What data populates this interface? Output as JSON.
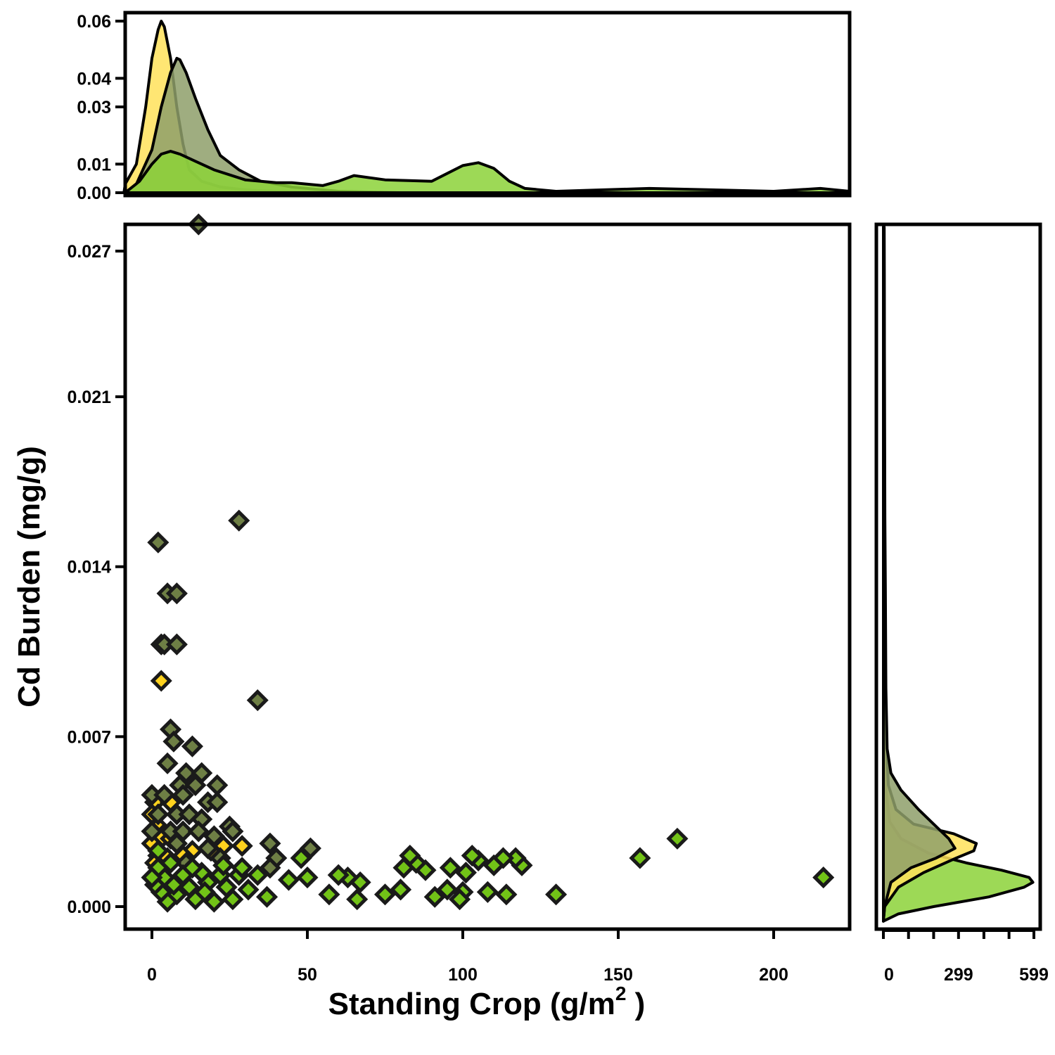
{
  "chart_data": {
    "type": "scatter",
    "xlabel": "Standing Crop (g/m",
    "xlabel_sup": "2",
    "xlabel_suffix": " )",
    "ylabel": "Cd Burden (mg/g)",
    "xlim": [
      -9,
      225
    ],
    "ylim": [
      -0.001,
      0.028
    ],
    "x_ticks": [
      0,
      50,
      100,
      150,
      200
    ],
    "x_tick_labels": [
      "0",
      "50",
      "100",
      "150",
      "200"
    ],
    "y_ticks": [
      0.0,
      0.007,
      0.014,
      0.021,
      0.027
    ],
    "y_tick_labels": [
      "0.000",
      "0.007",
      "0.014",
      "0.021",
      "0.027"
    ],
    "colors": {
      "yellow": "#FFD21E",
      "olive": "#6E7F45",
      "green": "#72C317",
      "outline": "#1A1A1A"
    },
    "series": [
      {
        "color": "#FFD21E",
        "points": [
          [
            3,
            0.0108
          ],
          [
            3,
            0.0093
          ],
          [
            1,
            0.0043
          ],
          [
            6,
            0.0043
          ],
          [
            0,
            0.0038
          ],
          [
            2,
            0.0033
          ],
          [
            4,
            0.003
          ],
          [
            3,
            0.0028
          ],
          [
            6,
            0.0028
          ],
          [
            0,
            0.0026
          ],
          [
            8,
            0.0026
          ],
          [
            13,
            0.0023
          ],
          [
            19,
            0.0023
          ],
          [
            23,
            0.0025
          ],
          [
            29,
            0.0025
          ],
          [
            2,
            0.0021
          ],
          [
            5,
            0.002
          ],
          [
            1,
            0.0018
          ],
          [
            10,
            0.0021
          ]
        ]
      },
      {
        "color": "#6E7F45",
        "points": [
          [
            15,
            0.0281
          ],
          [
            28,
            0.0159
          ],
          [
            2,
            0.015
          ],
          [
            5,
            0.0129
          ],
          [
            8,
            0.0129
          ],
          [
            4,
            0.0108
          ],
          [
            8,
            0.0108
          ],
          [
            34,
            0.0085
          ],
          [
            6,
            0.0073
          ],
          [
            7,
            0.0068
          ],
          [
            13,
            0.0066
          ],
          [
            5,
            0.0059
          ],
          [
            11,
            0.0055
          ],
          [
            16,
            0.0055
          ],
          [
            9,
            0.005
          ],
          [
            14,
            0.005
          ],
          [
            21,
            0.005
          ],
          [
            0,
            0.0046
          ],
          [
            4,
            0.0046
          ],
          [
            10,
            0.0046
          ],
          [
            18,
            0.0043
          ],
          [
            21,
            0.0043
          ],
          [
            2,
            0.0038
          ],
          [
            8,
            0.0038
          ],
          [
            12,
            0.0038
          ],
          [
            16,
            0.0036
          ],
          [
            25,
            0.0033
          ],
          [
            0,
            0.0031
          ],
          [
            6,
            0.0031
          ],
          [
            10,
            0.0031
          ],
          [
            15,
            0.0031
          ],
          [
            20,
            0.0029
          ],
          [
            26,
            0.0031
          ],
          [
            38,
            0.0026
          ],
          [
            51,
            0.0024
          ],
          [
            8,
            0.0026
          ],
          [
            18,
            0.0024
          ],
          [
            40,
            0.002
          ],
          [
            38,
            0.0016
          ],
          [
            22,
            0.002
          ],
          [
            11,
            0.0018
          ]
        ]
      },
      {
        "color": "#72C317",
        "points": [
          [
            216,
            0.0012
          ],
          [
            169,
            0.0028
          ],
          [
            157,
            0.002
          ],
          [
            130,
            0.0005
          ],
          [
            119,
            0.0017
          ],
          [
            117,
            0.002
          ],
          [
            113,
            0.002
          ],
          [
            114,
            0.0005
          ],
          [
            110,
            0.0017
          ],
          [
            108,
            0.0006
          ],
          [
            105,
            0.0019
          ],
          [
            103,
            0.0021
          ],
          [
            101,
            0.0014
          ],
          [
            100,
            0.0006
          ],
          [
            99,
            0.0003
          ],
          [
            96,
            0.0016
          ],
          [
            95,
            0.0007
          ],
          [
            91,
            0.0004
          ],
          [
            88,
            0.0015
          ],
          [
            85,
            0.0018
          ],
          [
            83,
            0.0021
          ],
          [
            81,
            0.0016
          ],
          [
            80,
            0.0007
          ],
          [
            75,
            0.0005
          ],
          [
            67,
            0.001
          ],
          [
            66,
            0.0003
          ],
          [
            63,
            0.0012
          ],
          [
            60,
            0.0013
          ],
          [
            57,
            0.0005
          ],
          [
            50,
            0.0012
          ],
          [
            48,
            0.002
          ],
          [
            44,
            0.0011
          ],
          [
            37,
            0.0004
          ],
          [
            34,
            0.0013
          ],
          [
            31,
            0.0007
          ],
          [
            28,
            0.0013
          ],
          [
            26,
            0.0003
          ],
          [
            24,
            0.0008
          ],
          [
            22,
            0.0013
          ],
          [
            20,
            0.0002
          ],
          [
            18,
            0.001
          ],
          [
            16,
            0.0014
          ],
          [
            14,
            0.0003
          ],
          [
            12,
            0.0008
          ],
          [
            10,
            0.0013
          ],
          [
            8,
            0.0005
          ],
          [
            7,
            0.0009
          ],
          [
            5,
            0.0002
          ],
          [
            4,
            0.0012
          ],
          [
            3,
            0.0006
          ],
          [
            2,
            0.0016
          ],
          [
            1,
            0.0009
          ],
          [
            0,
            0.0012
          ],
          [
            2,
            0.0023
          ],
          [
            6,
            0.0018
          ],
          [
            13,
            0.0016
          ],
          [
            17,
            0.0006
          ],
          [
            23,
            0.0017
          ],
          [
            29,
            0.0016
          ]
        ]
      }
    ],
    "top_density": {
      "y_ticks": [
        0.0,
        0.01,
        0.03,
        0.04,
        0.06
      ],
      "y_tick_labels": [
        "0.00",
        "0.01",
        "0.03",
        "0.04",
        "0.06"
      ],
      "series": [
        {
          "color": "#FFE25A",
          "x": [
            -9,
            -5,
            -2,
            0,
            2,
            3,
            4,
            6,
            8,
            10,
            12,
            16,
            22,
            30,
            40,
            60,
            80,
            120,
            225
          ],
          "y": [
            0.003,
            0.01,
            0.03,
            0.047,
            0.057,
            0.06,
            0.058,
            0.047,
            0.03,
            0.017,
            0.008,
            0.004,
            0.002,
            0.001,
            0.0005,
            0,
            0,
            0,
            0
          ]
        },
        {
          "color": "#8E9F6A",
          "x": [
            -9,
            -5,
            0,
            3,
            6,
            8,
            9,
            11,
            14,
            18,
            22,
            28,
            35,
            45,
            60,
            80,
            120,
            225
          ],
          "y": [
            0,
            0.003,
            0.015,
            0.03,
            0.042,
            0.047,
            0.0465,
            0.042,
            0.033,
            0.022,
            0.013,
            0.008,
            0.004,
            0.002,
            0.0005,
            0,
            0,
            0
          ]
        },
        {
          "color": "#8CD238",
          "x": [
            -9,
            -4,
            0,
            3,
            6,
            9,
            14,
            20,
            30,
            40,
            45,
            55,
            60,
            65,
            75,
            90,
            100,
            105,
            110,
            115,
            120,
            130,
            160,
            200,
            215,
            225
          ],
          "y": [
            0,
            0.004,
            0.01,
            0.0135,
            0.0145,
            0.0135,
            0.011,
            0.008,
            0.0045,
            0.0035,
            0.0035,
            0.0025,
            0.004,
            0.006,
            0.0045,
            0.004,
            0.0095,
            0.0105,
            0.0085,
            0.004,
            0.0015,
            0.0005,
            0.0015,
            0.0005,
            0.0015,
            0.0005
          ]
        }
      ]
    },
    "right_density": {
      "x_ticks": [
        0,
        299,
        599
      ],
      "x_tick_labels": [
        "0",
        "299",
        "599"
      ],
      "series": [
        {
          "color": "#8CD238",
          "y": [
            -0.0006,
            -0.0003,
            0,
            0.0004,
            0.0008,
            0.001,
            0.0012,
            0.0015,
            0.0018,
            0.0022,
            0.0028,
            0.0035,
            0.005,
            0.008,
            0.015,
            0.028
          ],
          "x": [
            0,
            60,
            200,
            420,
            560,
            595,
            580,
            470,
            330,
            180,
            70,
            25,
            8,
            4,
            4,
            3
          ]
        },
        {
          "color": "#FFE25A",
          "y": [
            -0.0006,
            0,
            0.0008,
            0.0014,
            0.002,
            0.0023,
            0.0026,
            0.003,
            0.0034,
            0.004,
            0.005,
            0.008,
            0.028
          ],
          "x": [
            0,
            5,
            60,
            160,
            290,
            360,
            370,
            280,
            120,
            50,
            20,
            6,
            3
          ]
        },
        {
          "color": "#8E9F6A",
          "y": [
            -0.0006,
            0,
            0.001,
            0.0016,
            0.002,
            0.0024,
            0.0028,
            0.0034,
            0.004,
            0.0048,
            0.0055,
            0.0065,
            0.009,
            0.013,
            0.016,
            0.028
          ],
          "x": [
            0,
            5,
            30,
            110,
            210,
            285,
            260,
            200,
            140,
            70,
            30,
            15,
            10,
            8,
            6,
            3
          ]
        }
      ]
    }
  }
}
